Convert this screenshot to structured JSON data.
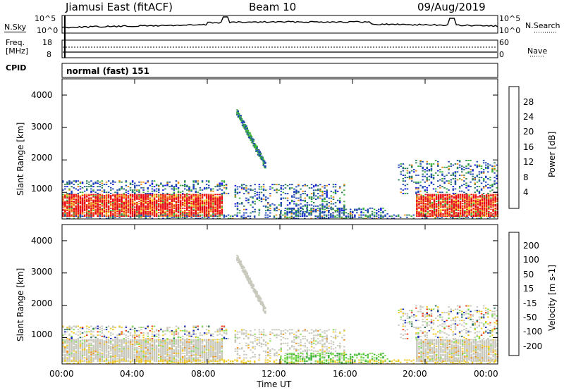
{
  "header": {
    "station": "Jiamusi East (fitACF)",
    "beam": "Beam 10",
    "date": "09/Aug/2019"
  },
  "noise_panel": {
    "left_label": "N.Sky",
    "right_label": "N.Search",
    "left_ticks": [
      "10^5",
      "10^0"
    ],
    "right_ticks": [
      "10^5",
      "10^0"
    ]
  },
  "freq_panel": {
    "left_label_line1": "Freq.",
    "left_label_line2": "[MHz]",
    "right_label": "Nave",
    "left_ticks": [
      "18",
      "8"
    ],
    "right_ticks": [
      "60",
      "0"
    ]
  },
  "cpid": {
    "label": "CPID",
    "value": "normal (fast) 151"
  },
  "power_panel": {
    "ylabel": "Slant Range [km]",
    "yticks": [
      "4000",
      "3000",
      "2000",
      "1000"
    ],
    "colorbar_label": "Power [dB]",
    "colorbar_ticks": [
      "28",
      "24",
      "20",
      "16",
      "12",
      "8",
      "4"
    ],
    "colors": [
      "#1414e6",
      "#1e46b4",
      "#2d7f5a",
      "#3cb43c",
      "#f0d21e",
      "#f08c14",
      "#f03c14",
      "#e6000a"
    ]
  },
  "velocity_panel": {
    "ylabel": "Slant Range [km]",
    "yticks": [
      "4000",
      "3000",
      "2000",
      "1000"
    ],
    "colorbar_label": "Velocity [m s-1]",
    "colorbar_ticks": [
      "200",
      "100",
      "50",
      "15",
      "-15",
      "-50",
      "-100",
      "-200"
    ],
    "colors": [
      "#1428b4",
      "#1e6e5a",
      "#3cb43c",
      "#7ddc50",
      "#c8c8bc",
      "#f0c81e",
      "#f08c14",
      "#f03c14",
      "#e6000a"
    ]
  },
  "xaxis": {
    "label": "Time UT",
    "ticks": [
      "00:00",
      "04:00",
      "08:00",
      "12:00",
      "16:00",
      "20:00",
      "00:00"
    ]
  },
  "chart_data": [
    {
      "type": "heatmap",
      "name": "Power",
      "x_range_hours": [
        0,
        24
      ],
      "y_range_km": [
        180,
        4500
      ],
      "color_range_db": [
        0,
        32
      ],
      "regions": [
        {
          "t": [
            0,
            8.5
          ],
          "r": [
            300,
            900
          ],
          "level": "high"
        },
        {
          "t": [
            0,
            9
          ],
          "r": [
            900,
            1300
          ],
          "level": "low"
        },
        {
          "t": [
            9.5,
            11
          ],
          "r": [
            1500,
            3500
          ],
          "level": "mixed"
        },
        {
          "t": [
            9.5,
            15
          ],
          "r": [
            300,
            1200
          ],
          "level": "low"
        },
        {
          "t": [
            19.5,
            24
          ],
          "r": [
            300,
            900
          ],
          "level": "high"
        },
        {
          "t": [
            18.5,
            24
          ],
          "r": [
            900,
            2000
          ],
          "level": "low"
        }
      ]
    },
    {
      "type": "heatmap",
      "name": "Velocity",
      "x_range_hours": [
        0,
        24
      ],
      "y_range_km": [
        180,
        4500
      ],
      "color_range_ms": [
        -250,
        250
      ],
      "regions": [
        {
          "t": [
            0,
            8.5
          ],
          "r": [
            300,
            900
          ],
          "level": "near-zero"
        },
        {
          "t": [
            9.5,
            11
          ],
          "r": [
            1500,
            3500
          ],
          "level": "near-zero"
        },
        {
          "t": [
            19.5,
            24
          ],
          "r": [
            300,
            900
          ],
          "level": "near-zero"
        }
      ]
    }
  ]
}
